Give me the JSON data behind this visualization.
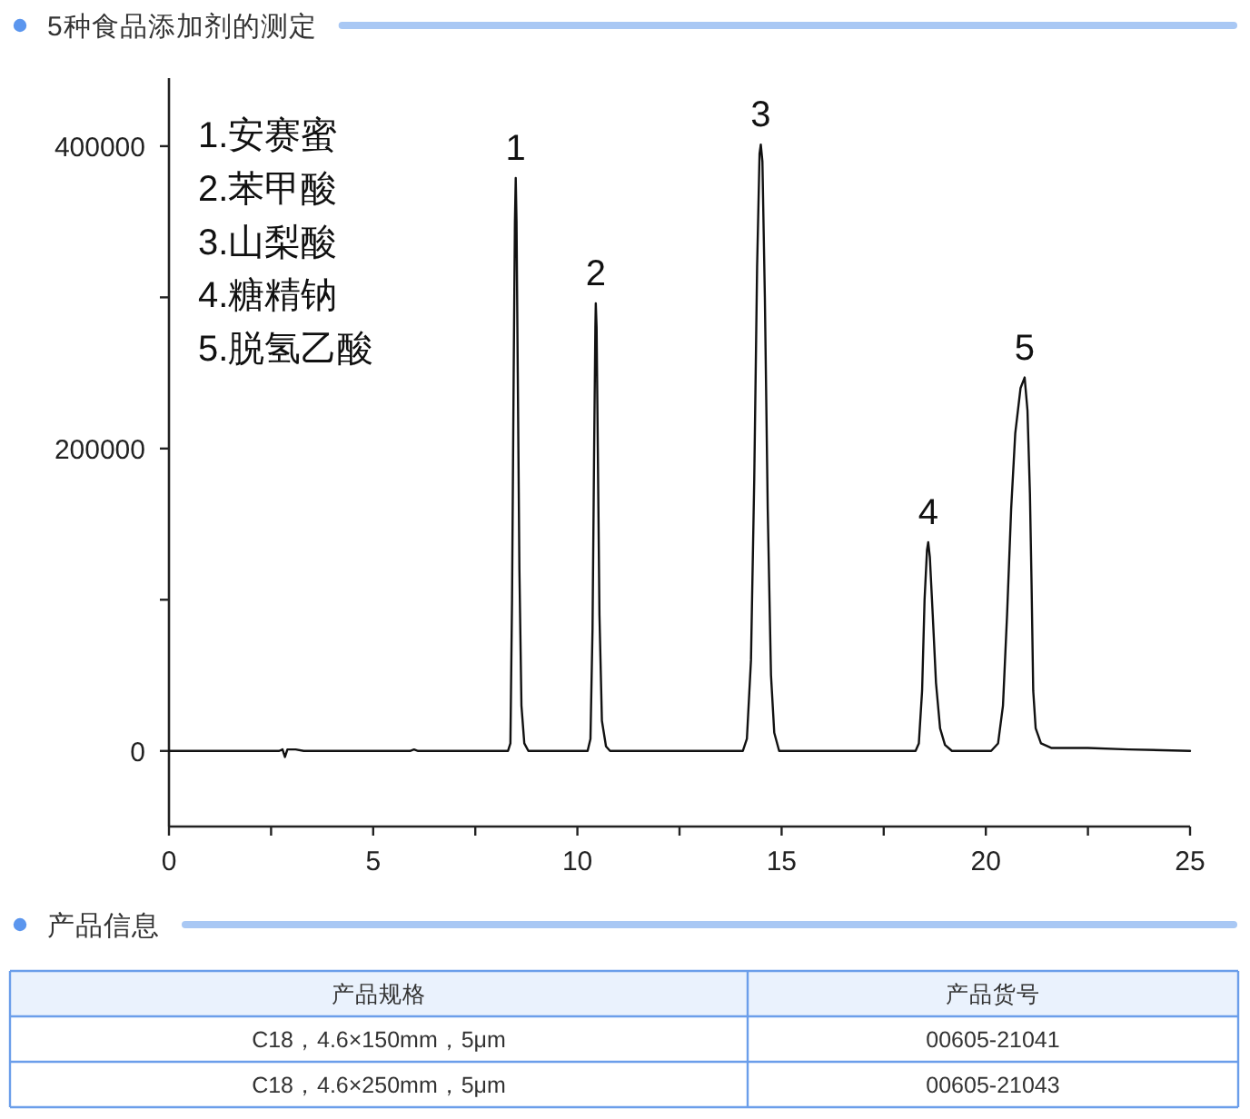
{
  "chart_data": [
    {
      "type": "line",
      "title": "5种食品添加剂的测定",
      "color": "#111111",
      "x": [
        0,
        2.7,
        2.78,
        2.84,
        2.9,
        3.1,
        3.3,
        5.9,
        6.0,
        6.1,
        8.3,
        8.36,
        8.4,
        8.44,
        8.47,
        8.49,
        8.51,
        8.54,
        8.58,
        8.63,
        8.7,
        8.8,
        10.25,
        10.32,
        10.37,
        10.41,
        10.44,
        10.45,
        10.47,
        10.5,
        10.54,
        10.6,
        10.7,
        10.8,
        14.05,
        14.15,
        14.25,
        14.33,
        14.4,
        14.46,
        14.49,
        14.53,
        14.59,
        14.66,
        14.74,
        14.82,
        14.94,
        18.28,
        18.36,
        18.44,
        18.5,
        18.56,
        18.59,
        18.63,
        18.7,
        18.78,
        18.88,
        19.0,
        19.17,
        20.13,
        20.3,
        20.42,
        20.52,
        20.62,
        20.72,
        20.85,
        20.95,
        21.02,
        21.08,
        21.12,
        21.16,
        21.22,
        21.35,
        21.6,
        22.5,
        23.5,
        25
      ],
      "values": [
        0,
        0,
        1000,
        -4000,
        1000,
        1000,
        0,
        0,
        1000,
        0,
        0,
        5000,
        100000,
        250000,
        350000,
        379000,
        350000,
        250000,
        120000,
        30000,
        5000,
        0,
        0,
        8000,
        80000,
        200000,
        280000,
        296000,
        280000,
        200000,
        90000,
        20000,
        3000,
        0,
        0,
        8000,
        60000,
        180000,
        320000,
        395000,
        401000,
        390000,
        300000,
        160000,
        50000,
        12000,
        0,
        0,
        5000,
        40000,
        100000,
        133000,
        138000,
        128000,
        90000,
        45000,
        15000,
        4000,
        0,
        0,
        5000,
        30000,
        90000,
        160000,
        210000,
        240000,
        247000,
        225000,
        170000,
        110000,
        40000,
        15000,
        5000,
        2000,
        2000,
        1000,
        0
      ],
      "xlim": [
        0,
        25
      ],
      "ylim": [
        -50000,
        445000
      ],
      "xticks": [
        0,
        {
          "value": 2.5,
          "label": null
        },
        5,
        {
          "value": 7.5,
          "label": null
        },
        10,
        {
          "value": 12.5,
          "label": null
        },
        15,
        {
          "value": 17.5,
          "label": null
        },
        20,
        {
          "value": 22.5,
          "label": null
        },
        25
      ],
      "yticks": [
        0,
        {
          "value": 100000,
          "label": null
        },
        200000,
        {
          "value": 300000,
          "label": null
        },
        400000
      ],
      "annotations": [
        "1.安赛蜜",
        "2.苯甲酸",
        "3.山梨酸",
        "4.糖精钠",
        "5.脱氢乙酸",
        {
          "text": "1",
          "x": 8.49,
          "y": 379000
        },
        {
          "text": "2",
          "x": 10.45,
          "y": 296000
        },
        {
          "text": "3",
          "x": 14.49,
          "y": 401000
        },
        {
          "text": "4",
          "x": 18.59,
          "y": 138000
        },
        {
          "text": "5",
          "x": 20.95,
          "y": 247000
        }
      ]
    },
    {
      "type": "other",
      "title": "产品信息",
      "annotations": [
        "产品规格",
        "产品货号",
        "C18，4.6×150mm，5μm",
        "00605-21041",
        "C18，4.6×250mm，5μm",
        "00605-21043"
      ]
    }
  ]
}
